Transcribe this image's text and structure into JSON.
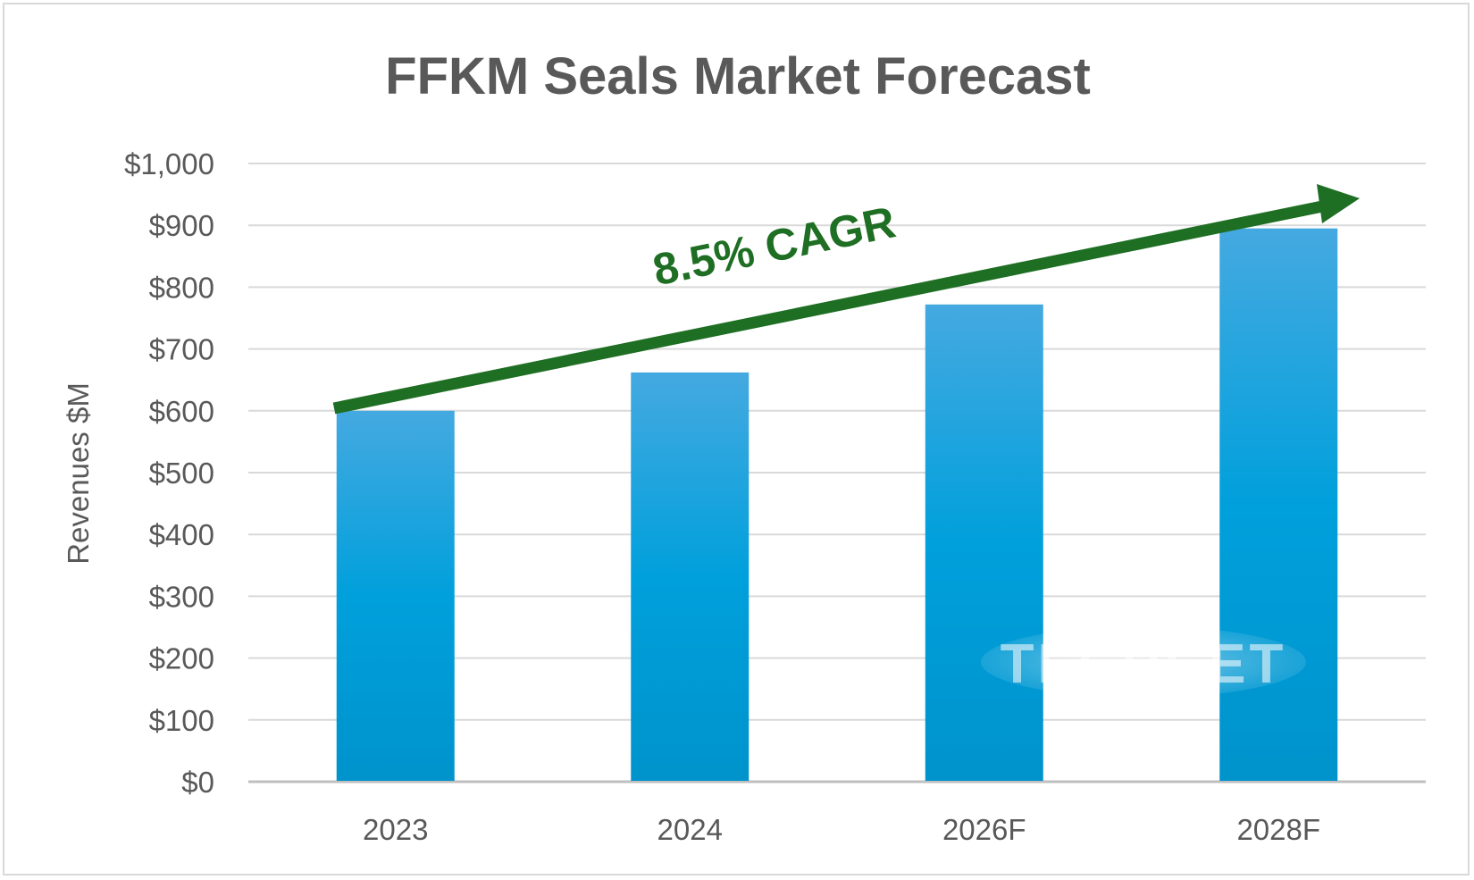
{
  "chart_data": {
    "type": "bar",
    "title": "FFKM Seals Market Forecast",
    "xlabel": "",
    "ylabel": "Revenues $M",
    "categories": [
      "2023",
      "2024",
      "2026F",
      "2028F"
    ],
    "values": [
      600,
      662,
      772,
      895
    ],
    "ylim": [
      0,
      1000
    ],
    "yticks": [
      0,
      100,
      200,
      300,
      400,
      500,
      600,
      700,
      800,
      900,
      1000
    ],
    "ytick_labels": [
      "$0",
      "$100",
      "$200",
      "$300",
      "$400",
      "$500",
      "$600",
      "$700",
      "$800",
      "$900",
      "$1,000"
    ],
    "grid": true,
    "bar_color": "#0aa0dc",
    "annotation": {
      "text": "8.5% CAGR",
      "color": "#1e6e23"
    }
  },
  "watermark": "TECHCET"
}
